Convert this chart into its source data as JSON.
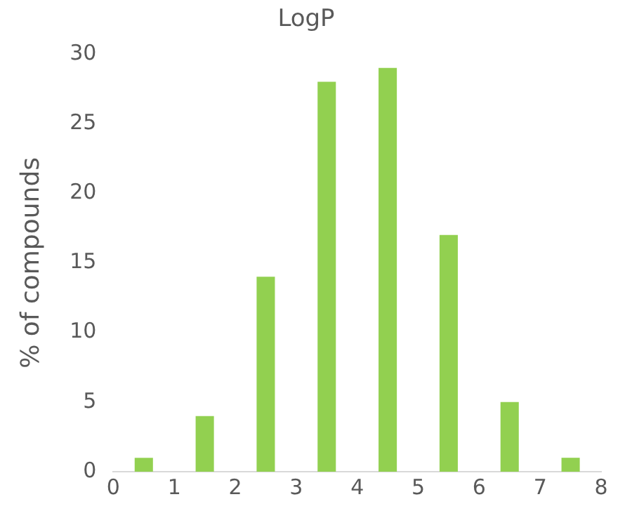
{
  "chart_data": {
    "type": "histogram",
    "title": "LogP",
    "ylabel": "% of compounds",
    "bins": [
      0,
      1,
      2,
      3,
      4,
      5,
      6,
      7,
      8
    ],
    "values": [
      1,
      4,
      14,
      28,
      29,
      17,
      5,
      1
    ],
    "color": "#92d050",
    "xlim": [
      0,
      8
    ],
    "xticks": [
      0,
      1,
      2,
      3,
      4,
      5,
      6,
      7,
      8
    ],
    "ylim": [
      0,
      30
    ],
    "yticks": [
      0,
      5,
      10,
      15,
      20,
      25,
      30
    ],
    "grid": false,
    "legend": false
  }
}
